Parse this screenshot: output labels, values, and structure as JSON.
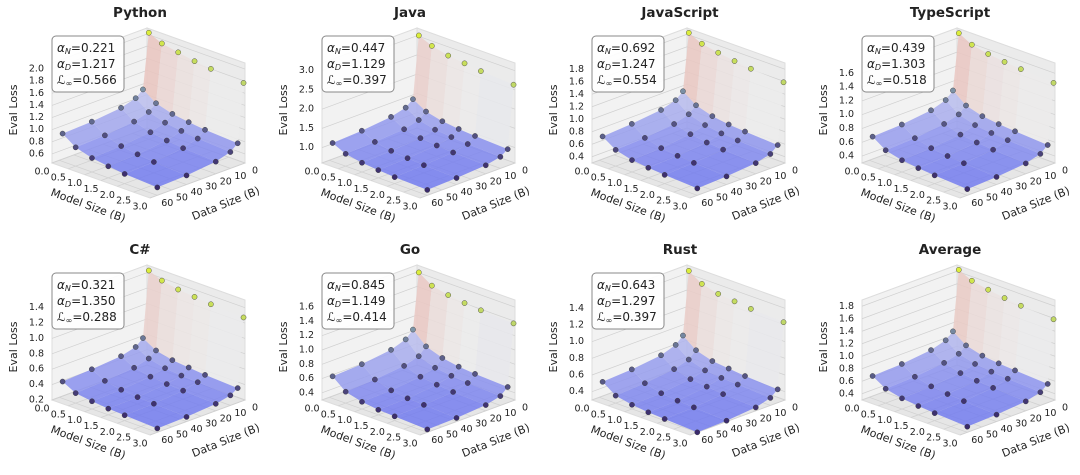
{
  "chart_data": [
    {
      "type": "surface3d",
      "title": "Python",
      "annotation": [
        {
          "symbol": "α",
          "sub": "N",
          "text": "=0.221"
        },
        {
          "symbol": "α",
          "sub": "D",
          "text": "=1.217"
        },
        {
          "symbol": "ℒ",
          "sub": "∞",
          "text": "=0.566"
        }
      ],
      "x_label": "Model Size (B)",
      "y_label": "Data Size (B)",
      "z_label": "Eval Loss",
      "xlim": [
        0,
        3
      ],
      "xticks": [
        {
          "value": 0,
          "label": "0.0"
        },
        0.5,
        {
          "value": 1,
          "label": "1.0"
        },
        1.5,
        {
          "value": 2,
          "label": "2.0"
        },
        2.5,
        {
          "value": 3,
          "label": "3.0"
        }
      ],
      "ylim": [
        0,
        65
      ],
      "yticks": [
        0,
        10,
        20,
        30,
        40,
        50,
        60
      ],
      "zlim": [
        0.45,
        2.1
      ],
      "zticks": [
        0.6,
        0.8,
        {
          "value": 1,
          "label": "1.0"
        },
        1.2,
        1.4,
        1.6,
        1.8,
        {
          "value": 2,
          "label": "2.0"
        }
      ],
      "x": [
        0.1,
        0.5,
        1,
        1.5,
        2,
        3
      ],
      "y": [
        1,
        5,
        10,
        20,
        40,
        60
      ],
      "z": [
        [
          2.05,
          1.15,
          1.05,
          0.98,
          0.93,
          0.91
        ],
        [
          1.95,
          1.0,
          0.9,
          0.83,
          0.78,
          0.76
        ],
        [
          1.9,
          0.92,
          0.82,
          0.75,
          0.7,
          0.68
        ],
        [
          1.85,
          0.88,
          0.78,
          0.71,
          0.66,
          0.64
        ],
        [
          1.82,
          0.85,
          0.75,
          0.68,
          0.63,
          0.61
        ],
        [
          1.78,
          0.82,
          0.72,
          0.65,
          0.6,
          0.58
        ]
      ],
      "colormap": [
        "#6f78ee",
        "#ececec",
        "#e46e5c"
      ],
      "point_colormap": [
        "#3a2a6c",
        "#8fb0b8",
        "#dcee3c"
      ]
    },
    {
      "type": "surface3d",
      "title": "Java",
      "annotation": [
        {
          "symbol": "α",
          "sub": "N",
          "text": "=0.447"
        },
        {
          "symbol": "α",
          "sub": "D",
          "text": "=1.129"
        },
        {
          "symbol": "ℒ",
          "sub": "∞",
          "text": "=0.397"
        }
      ],
      "x_label": "Model Size (B)",
      "y_label": "Data Size (B)",
      "z_label": "Eval Loss",
      "xlim": [
        0,
        3
      ],
      "xticks": [
        {
          "value": 0,
          "label": "0.0"
        },
        0.5,
        {
          "value": 1,
          "label": "1.0"
        },
        1.5,
        {
          "value": 2,
          "label": "2.0"
        },
        2.5,
        {
          "value": 3,
          "label": "3.0"
        }
      ],
      "ylim": [
        0,
        65
      ],
      "yticks": [
        0,
        10,
        20,
        30,
        40,
        50,
        60
      ],
      "zlim": [
        0.6,
        3.2
      ],
      "zticks": [
        {
          "value": 1,
          "label": "1.0"
        },
        1.5,
        {
          "value": 2,
          "label": "2.0"
        },
        2.5,
        {
          "value": 3,
          "label": "3.0"
        }
      ],
      "x": [
        0.1,
        0.5,
        1,
        1.5,
        2,
        3
      ],
      "y": [
        1,
        5,
        10,
        20,
        40,
        60
      ],
      "z": [
        [
          3.05,
          1.45,
          1.3,
          1.2,
          1.12,
          1.08
        ],
        [
          2.9,
          1.25,
          1.1,
          1.0,
          0.95,
          0.92
        ],
        [
          2.8,
          1.15,
          1.0,
          0.92,
          0.87,
          0.84
        ],
        [
          2.75,
          1.1,
          0.96,
          0.88,
          0.83,
          0.8
        ],
        [
          2.7,
          1.07,
          0.93,
          0.85,
          0.8,
          0.77
        ],
        [
          2.65,
          1.03,
          0.9,
          0.82,
          0.77,
          0.74
        ]
      ],
      "colormap": [
        "#6f78ee",
        "#ececec",
        "#e46e5c"
      ],
      "point_colormap": [
        "#3a2a6c",
        "#8fb0b8",
        "#dcee3c"
      ]
    },
    {
      "type": "surface3d",
      "title": "JavaScript",
      "annotation": [
        {
          "symbol": "α",
          "sub": "N",
          "text": "=0.692"
        },
        {
          "symbol": "α",
          "sub": "D",
          "text": "=1.247"
        },
        {
          "symbol": "ℒ",
          "sub": "∞",
          "text": "=0.554"
        }
      ],
      "x_label": "Model Size (B)",
      "y_label": "Data Size (B)",
      "z_label": "Eval Loss",
      "xlim": [
        0,
        3
      ],
      "xticks": [
        {
          "value": 0,
          "label": "0.0"
        },
        0.5,
        {
          "value": 1,
          "label": "1.0"
        },
        1.5,
        {
          "value": 2,
          "label": "2.0"
        },
        2.5,
        {
          "value": 3,
          "label": "3.0"
        }
      ],
      "ylim": [
        0,
        65
      ],
      "yticks": [
        0,
        10,
        20,
        30,
        40,
        50,
        60
      ],
      "zlim": [
        0.3,
        1.9
      ],
      "zticks": [
        0.4,
        0.6,
        0.8,
        {
          "value": 1,
          "label": "1.0"
        },
        1.2,
        1.4,
        1.6,
        1.8
      ],
      "x": [
        0.1,
        0.5,
        1,
        1.5,
        2,
        3
      ],
      "y": [
        1,
        5,
        10,
        20,
        40,
        60
      ],
      "z": [
        [
          1.85,
          0.95,
          0.85,
          0.78,
          0.73,
          0.7
        ],
        [
          1.75,
          0.8,
          0.7,
          0.63,
          0.58,
          0.56
        ],
        [
          1.7,
          0.72,
          0.62,
          0.56,
          0.51,
          0.49
        ],
        [
          1.66,
          0.68,
          0.58,
          0.52,
          0.48,
          0.46
        ],
        [
          1.63,
          0.66,
          0.56,
          0.5,
          0.46,
          0.44
        ],
        [
          1.6,
          0.63,
          0.53,
          0.47,
          0.43,
          0.41
        ]
      ],
      "colormap": [
        "#6f78ee",
        "#ececec",
        "#e46e5c"
      ],
      "point_colormap": [
        "#3a2a6c",
        "#8fb0b8",
        "#dcee3c"
      ]
    },
    {
      "type": "surface3d",
      "title": "TypeScript",
      "annotation": [
        {
          "symbol": "α",
          "sub": "N",
          "text": "=0.439"
        },
        {
          "symbol": "α",
          "sub": "D",
          "text": "=1.303"
        },
        {
          "symbol": "ℒ",
          "sub": "∞",
          "text": "=0.518"
        }
      ],
      "x_label": "Model Size (B)",
      "y_label": "Data Size (B)",
      "z_label": "Eval Loss",
      "xlim": [
        0,
        3
      ],
      "xticks": [
        {
          "value": 0,
          "label": "0.0"
        },
        0.5,
        {
          "value": 1,
          "label": "1.0"
        },
        1.5,
        {
          "value": 2,
          "label": "2.0"
        },
        2.5,
        {
          "value": 3,
          "label": "3.0"
        }
      ],
      "ylim": [
        0,
        65
      ],
      "yticks": [
        0,
        10,
        20,
        30,
        40,
        50,
        60
      ],
      "zlim": [
        0.3,
        1.75
      ],
      "zticks": [
        0.4,
        0.6,
        0.8,
        {
          "value": 1,
          "label": "1.0"
        },
        1.2,
        1.4,
        1.6
      ],
      "x": [
        0.1,
        0.5,
        1,
        1.5,
        2,
        3
      ],
      "y": [
        1,
        5,
        10,
        20,
        40,
        60
      ],
      "z": [
        [
          1.7,
          0.9,
          0.8,
          0.73,
          0.68,
          0.66
        ],
        [
          1.6,
          0.75,
          0.66,
          0.6,
          0.55,
          0.53
        ],
        [
          1.55,
          0.68,
          0.59,
          0.53,
          0.49,
          0.47
        ],
        [
          1.52,
          0.65,
          0.56,
          0.5,
          0.46,
          0.44
        ],
        [
          1.5,
          0.63,
          0.54,
          0.48,
          0.44,
          0.42
        ],
        [
          1.47,
          0.6,
          0.51,
          0.45,
          0.41,
          0.39
        ]
      ],
      "colormap": [
        "#6f78ee",
        "#ececec",
        "#e46e5c"
      ],
      "point_colormap": [
        "#3a2a6c",
        "#8fb0b8",
        "#dcee3c"
      ]
    },
    {
      "type": "surface3d",
      "title": "C#",
      "annotation": [
        {
          "symbol": "α",
          "sub": "N",
          "text": "=0.321"
        },
        {
          "symbol": "α",
          "sub": "D",
          "text": "=1.350"
        },
        {
          "symbol": "ℒ",
          "sub": "∞",
          "text": "=0.288"
        }
      ],
      "x_label": "Model Size (B)",
      "y_label": "Data Size (B)",
      "z_label": "Eval Loss",
      "xlim": [
        0,
        3
      ],
      "xticks": [
        {
          "value": 0,
          "label": "0.0"
        },
        0.5,
        {
          "value": 1,
          "label": "1.0"
        },
        1.5,
        {
          "value": 2,
          "label": "2.0"
        },
        2.5,
        {
          "value": 3,
          "label": "3.0"
        }
      ],
      "ylim": [
        0,
        65
      ],
      "yticks": [
        0,
        10,
        20,
        30,
        40,
        50,
        60
      ],
      "zlim": [
        0.2,
        1.5
      ],
      "zticks": [
        0.2,
        0.4,
        0.6,
        0.8,
        {
          "value": 1,
          "label": "1.0"
        },
        1.2,
        1.4
      ],
      "x": [
        0.1,
        0.5,
        1,
        1.5,
        2,
        3
      ],
      "y": [
        1,
        5,
        10,
        20,
        40,
        60
      ],
      "z": [
        [
          1.45,
          0.6,
          0.52,
          0.47,
          0.44,
          0.42
        ],
        [
          1.38,
          0.5,
          0.43,
          0.38,
          0.35,
          0.33
        ],
        [
          1.34,
          0.45,
          0.38,
          0.34,
          0.31,
          0.3
        ],
        [
          1.32,
          0.43,
          0.36,
          0.32,
          0.29,
          0.28
        ],
        [
          1.3,
          0.41,
          0.35,
          0.31,
          0.28,
          0.27
        ],
        [
          1.28,
          0.39,
          0.33,
          0.29,
          0.26,
          0.25
        ]
      ],
      "colormap": [
        "#6f78ee",
        "#ececec",
        "#e46e5c"
      ],
      "point_colormap": [
        "#3a2a6c",
        "#8fb0b8",
        "#dcee3c"
      ]
    },
    {
      "type": "surface3d",
      "title": "Go",
      "annotation": [
        {
          "symbol": "α",
          "sub": "N",
          "text": "=0.845"
        },
        {
          "symbol": "α",
          "sub": "D",
          "text": "=1.149"
        },
        {
          "symbol": "ℒ",
          "sub": "∞",
          "text": "=0.414"
        }
      ],
      "x_label": "Model Size (B)",
      "y_label": "Data Size (B)",
      "z_label": "Eval Loss",
      "xlim": [
        0,
        3
      ],
      "xticks": [
        {
          "value": 0,
          "label": "0.0"
        },
        0.5,
        {
          "value": 1,
          "label": "1.0"
        },
        1.5,
        {
          "value": 2,
          "label": "2.0"
        },
        2.5,
        {
          "value": 3,
          "label": "3.0"
        }
      ],
      "ylim": [
        0,
        65
      ],
      "yticks": [
        0,
        10,
        20,
        30,
        40,
        50,
        60
      ],
      "zlim": [
        0.3,
        1.7
      ],
      "zticks": [
        0.4,
        0.6,
        0.8,
        {
          "value": 1,
          "label": "1.0"
        },
        1.2,
        1.4,
        1.6
      ],
      "x": [
        0.1,
        0.5,
        1,
        1.5,
        2,
        3
      ],
      "y": [
        1,
        5,
        10,
        20,
        40,
        60
      ],
      "z": [
        [
          1.62,
          0.85,
          0.75,
          0.68,
          0.63,
          0.61
        ],
        [
          1.5,
          0.68,
          0.58,
          0.52,
          0.48,
          0.46
        ],
        [
          1.45,
          0.6,
          0.5,
          0.45,
          0.41,
          0.4
        ],
        [
          1.42,
          0.56,
          0.47,
          0.42,
          0.38,
          0.37
        ],
        [
          1.4,
          0.54,
          0.45,
          0.4,
          0.37,
          0.36
        ],
        [
          1.38,
          0.52,
          0.43,
          0.38,
          0.35,
          0.34
        ]
      ],
      "colormap": [
        "#6f78ee",
        "#ececec",
        "#e46e5c"
      ],
      "point_colormap": [
        "#3a2a6c",
        "#8fb0b8",
        "#dcee3c"
      ]
    },
    {
      "type": "surface3d",
      "title": "Rust",
      "annotation": [
        {
          "symbol": "α",
          "sub": "N",
          "text": "=0.643"
        },
        {
          "symbol": "α",
          "sub": "D",
          "text": "=1.297"
        },
        {
          "symbol": "ℒ",
          "sub": "∞",
          "text": "=0.397"
        }
      ],
      "x_label": "Model Size (B)",
      "y_label": "Data Size (B)",
      "z_label": "Eval Loss",
      "xlim": [
        0,
        3
      ],
      "xticks": [
        {
          "value": 0,
          "label": "0.0"
        },
        0.5,
        {
          "value": 1,
          "label": "1.0"
        },
        1.5,
        {
          "value": 2,
          "label": "2.0"
        },
        2.5,
        {
          "value": 3,
          "label": "3.0"
        }
      ],
      "ylim": [
        0,
        65
      ],
      "yticks": [
        0,
        10,
        20,
        30,
        40,
        50,
        60
      ],
      "zlim": [
        0.3,
        1.5
      ],
      "zticks": [
        0.4,
        0.6,
        0.8,
        {
          "value": 1,
          "label": "1.0"
        },
        1.2,
        1.4
      ],
      "x": [
        0.1,
        0.5,
        1,
        1.5,
        2,
        3
      ],
      "y": [
        1,
        5,
        10,
        20,
        40,
        60
      ],
      "z": [
        [
          1.45,
          0.7,
          0.62,
          0.56,
          0.52,
          0.5
        ],
        [
          1.35,
          0.58,
          0.5,
          0.45,
          0.41,
          0.39
        ],
        [
          1.3,
          0.52,
          0.44,
          0.4,
          0.36,
          0.35
        ],
        [
          1.28,
          0.5,
          0.42,
          0.38,
          0.34,
          0.33
        ],
        [
          1.26,
          0.48,
          0.41,
          0.36,
          0.33,
          0.32
        ],
        [
          1.24,
          0.46,
          0.39,
          0.34,
          0.31,
          0.3
        ]
      ],
      "colormap": [
        "#6f78ee",
        "#ececec",
        "#e46e5c"
      ],
      "point_colormap": [
        "#3a2a6c",
        "#8fb0b8",
        "#dcee3c"
      ]
    },
    {
      "type": "surface3d",
      "title": "Average",
      "annotation": [],
      "x_label": "Model Size (B)",
      "y_label": "Data Size (B)",
      "z_label": "Eval Loss",
      "xlim": [
        0,
        3
      ],
      "xticks": [
        {
          "value": 0,
          "label": "0.0"
        },
        0.5,
        {
          "value": 1,
          "label": "1.0"
        },
        1.5,
        {
          "value": 2,
          "label": "2.0"
        },
        2.5,
        {
          "value": 3,
          "label": "3.0"
        }
      ],
      "ylim": [
        0,
        65
      ],
      "yticks": [
        0,
        10,
        20,
        30,
        40,
        50,
        60
      ],
      "zlim": [
        0.3,
        1.9
      ],
      "zticks": [
        0.4,
        0.6,
        0.8,
        {
          "value": 1,
          "label": "1.0"
        },
        1.2,
        1.4,
        1.6,
        1.8
      ],
      "x": [
        0.1,
        0.5,
        1,
        1.5,
        2,
        3
      ],
      "y": [
        1,
        5,
        10,
        20,
        40,
        60
      ],
      "z": [
        [
          1.85,
          0.9,
          0.8,
          0.73,
          0.68,
          0.66
        ],
        [
          1.75,
          0.75,
          0.66,
          0.6,
          0.55,
          0.53
        ],
        [
          1.7,
          0.68,
          0.59,
          0.53,
          0.49,
          0.47
        ],
        [
          1.66,
          0.65,
          0.56,
          0.5,
          0.46,
          0.44
        ],
        [
          1.63,
          0.63,
          0.54,
          0.48,
          0.44,
          0.42
        ],
        [
          1.6,
          0.6,
          0.51,
          0.45,
          0.41,
          0.39
        ]
      ],
      "colormap": [
        "#6f78ee",
        "#ececec",
        "#e46e5c"
      ],
      "point_colormap": [
        "#3a2a6c",
        "#8fb0b8",
        "#dcee3c"
      ]
    }
  ]
}
